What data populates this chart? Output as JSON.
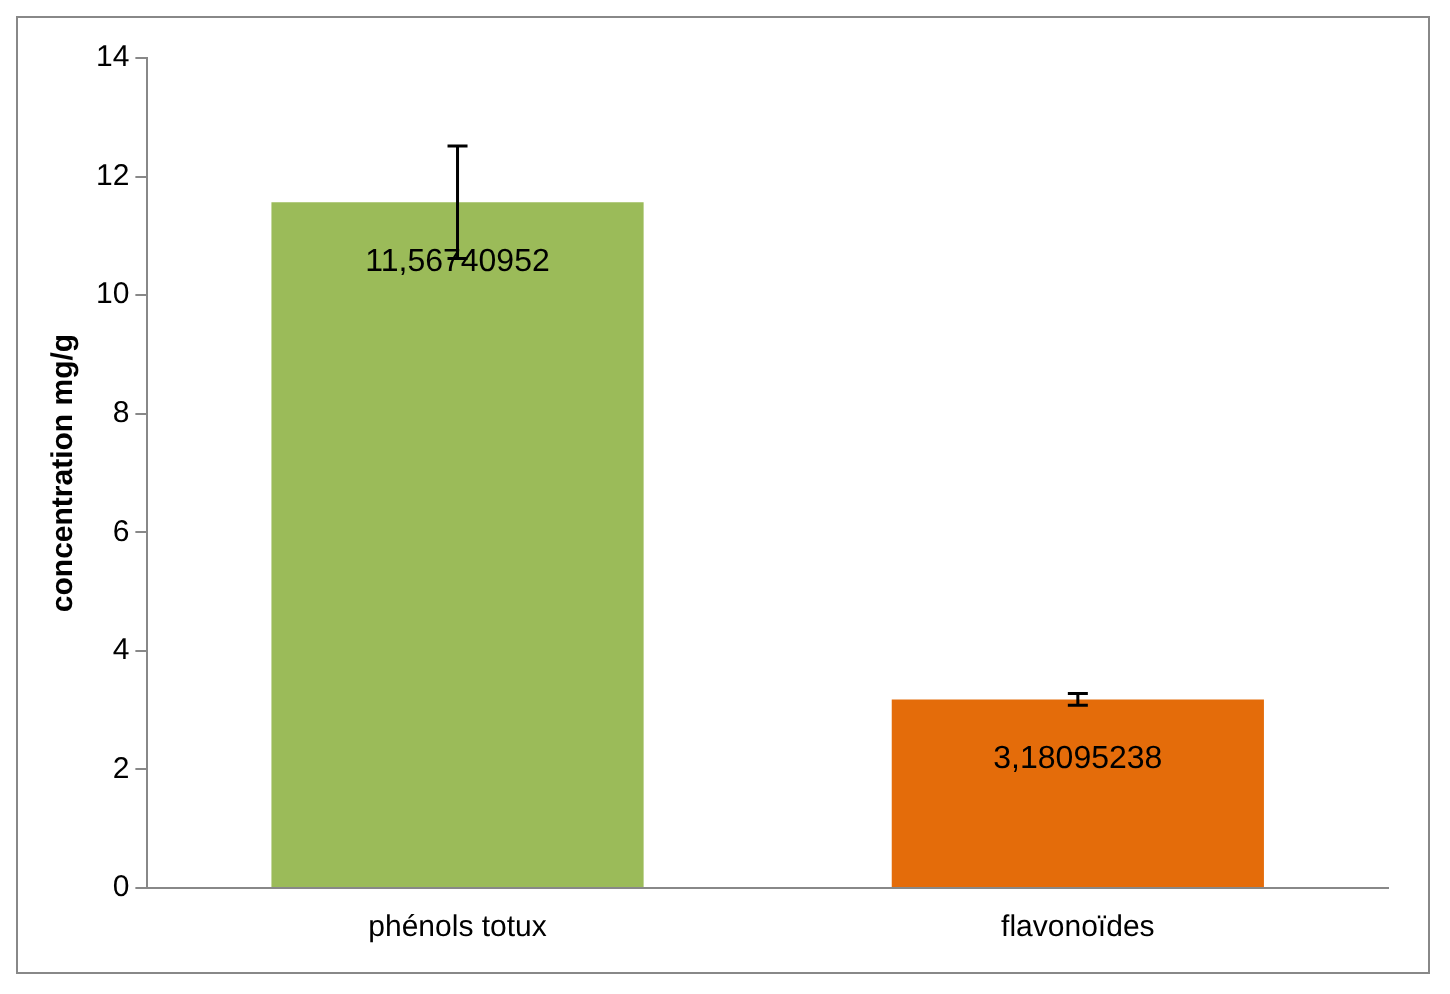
{
  "chart_data": {
    "type": "bar",
    "ylabel": "concentration mg/g",
    "categories": [
      "phénols totux",
      "flavonoïdes"
    ],
    "values": [
      11.56740952,
      3.18095238
    ],
    "colors": [
      "#9bbb59",
      "#e46c0a"
    ],
    "errors": [
      0.95,
      0.1
    ],
    "value_labels": [
      "11,56740952",
      "3,18095238"
    ],
    "ylim": [
      0,
      14
    ],
    "yticks": [
      0,
      2,
      4,
      6,
      8,
      10,
      12,
      14
    ],
    "grid": false,
    "legend": false
  }
}
